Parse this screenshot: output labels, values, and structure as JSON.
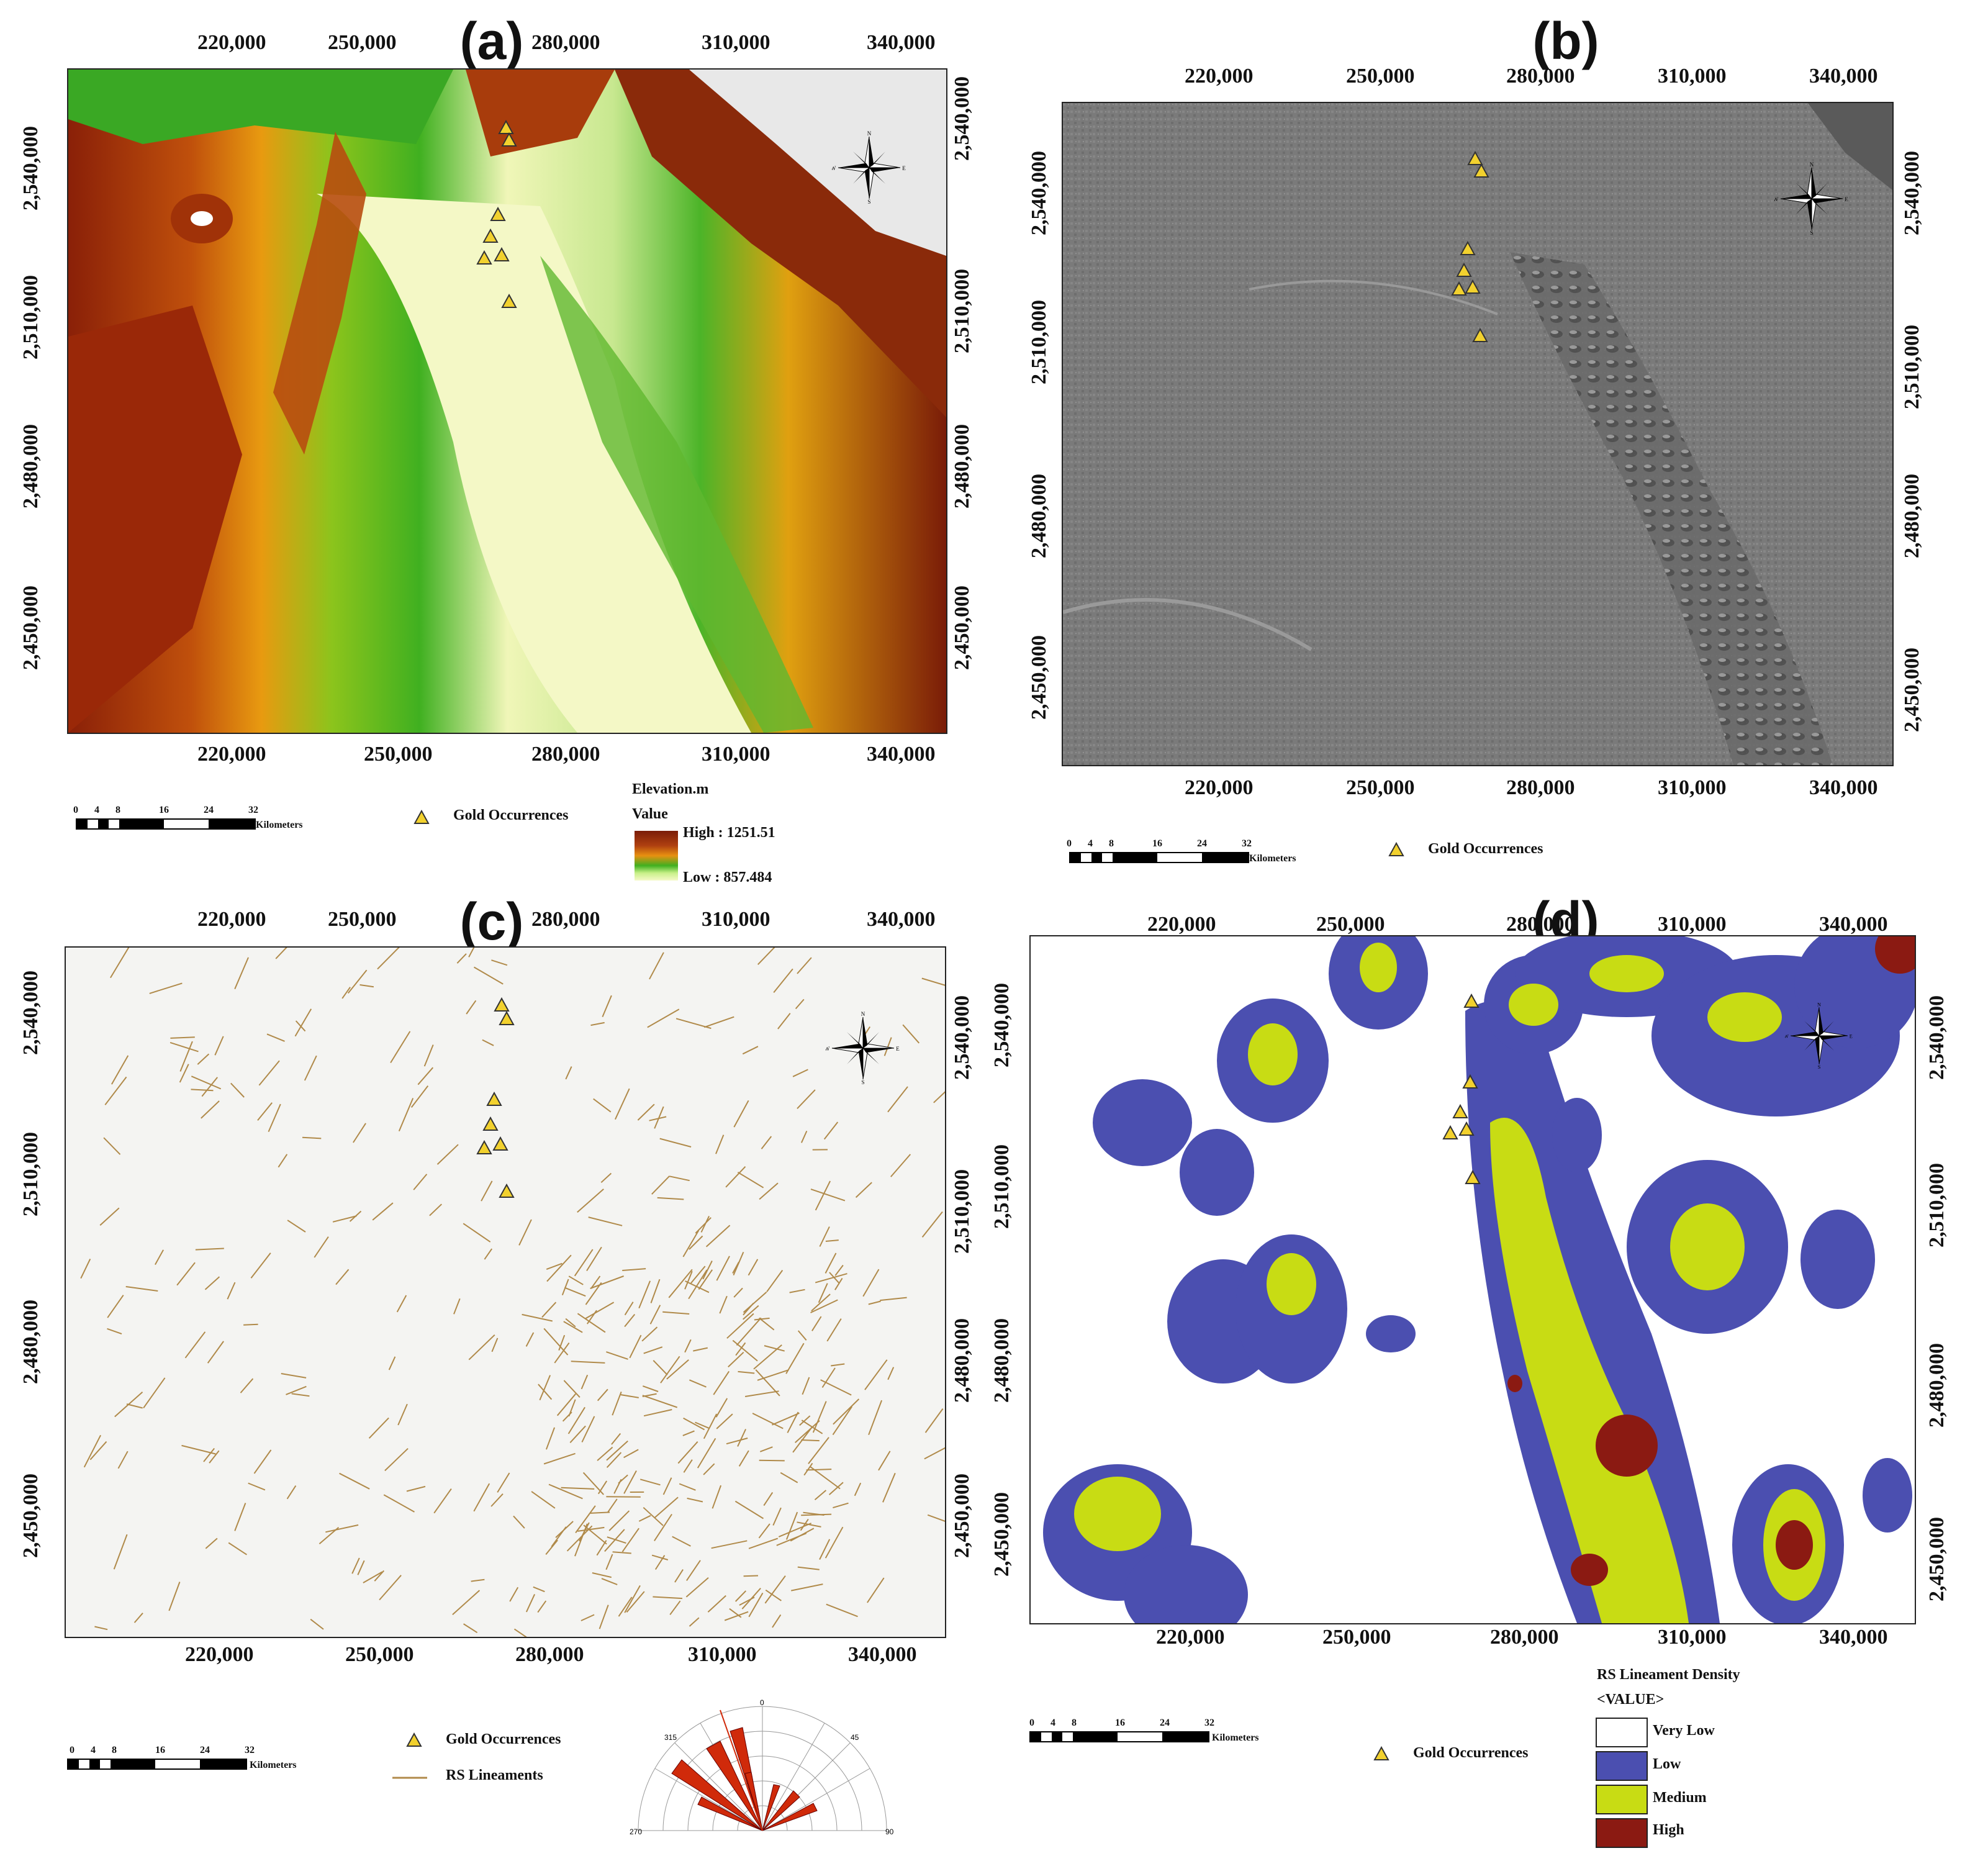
{
  "panels": {
    "a": {
      "letter": "(a)",
      "x_ticks": [
        "220,000",
        "250,000",
        "280,000",
        "310,000",
        "340,000"
      ],
      "y_ticks": [
        "2,540,000",
        "2,510,000",
        "2,480,000",
        "2,450,000"
      ],
      "legend": {
        "title": "Elevation.m",
        "subtitle": "Value",
        "high": "High : 1251.51",
        "low": "Low : 857.484",
        "gold": "Gold Occurrences"
      }
    },
    "b": {
      "letter": "(b)",
      "x_ticks": [
        "220,000",
        "250,000",
        "280,000",
        "310,000",
        "340,000"
      ],
      "y_ticks": [
        "2,540,000",
        "2,510,000",
        "2,480,000",
        "2,450,000"
      ],
      "legend": {
        "gold": "Gold Occurrences"
      }
    },
    "c": {
      "letter": "(c)",
      "x_ticks": [
        "220,000",
        "250,000",
        "280,000",
        "310,000",
        "340,000"
      ],
      "y_ticks": [
        "2,540,000",
        "2,510,000",
        "2,480,000",
        "2,450,000"
      ],
      "legend": {
        "gold": "Gold Occurrences",
        "lineaments": "RS Lineaments"
      },
      "rose": {
        "labels": [
          "270",
          "0",
          "90",
          "315",
          "45"
        ]
      }
    },
    "d": {
      "letter": "(d)",
      "x_ticks": [
        "220,000",
        "250,000",
        "280,000",
        "310,000",
        "340,000"
      ],
      "y_ticks": [
        "2,540,000",
        "2,510,000",
        "2,480,000",
        "2,450,000"
      ],
      "legend": {
        "title": "RS Lineament Density",
        "subtitle": "<VALUE>",
        "classes": [
          {
            "label": "Very Low",
            "color": "#ffffff"
          },
          {
            "label": "Low",
            "color": "#4b4fb0"
          },
          {
            "label": "Medium",
            "color": "#c8dc14"
          },
          {
            "label": "High",
            "color": "#8b1a12"
          }
        ],
        "gold": "Gold Occurrences"
      }
    }
  },
  "scalebar": {
    "ticks": [
      "0",
      "4",
      "8",
      "16",
      "24",
      "32"
    ],
    "unit": "Kilometers"
  },
  "compass": {
    "n": "N",
    "s": "S",
    "e": "E",
    "w": "W"
  },
  "colors": {
    "gold_marker": "#f2d12e",
    "lineament": "#b08a4a",
    "elev_high": "#7a1c08",
    "elev_low": "#f6f9c8"
  }
}
